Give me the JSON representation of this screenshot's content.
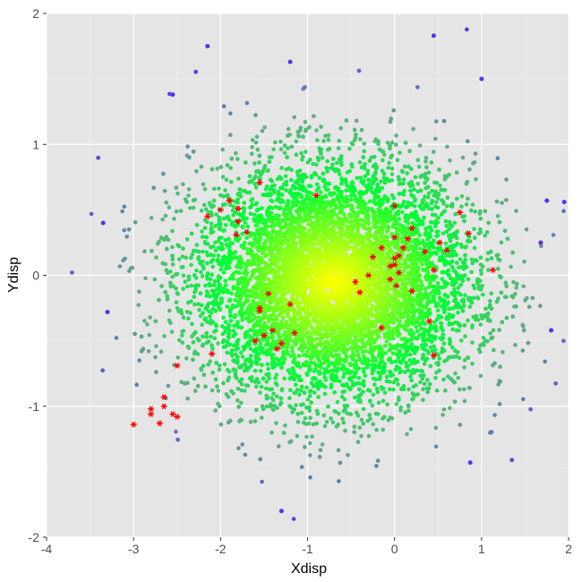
{
  "chart_data": {
    "type": "scatter",
    "title": "",
    "xlabel": "Xdisp",
    "ylabel": "Ydisp",
    "xlim": [
      -4,
      2
    ],
    "ylim": [
      -2,
      2
    ],
    "x_ticks": [
      -4,
      -3,
      -2,
      -1,
      0,
      1,
      2
    ],
    "y_ticks": [
      -2,
      -1,
      0,
      1,
      2
    ],
    "x_tick_labels": [
      "-4",
      "-3",
      "-2",
      "-1",
      "0",
      "1",
      "2"
    ],
    "y_tick_labels": [
      "-2",
      "-1",
      "0",
      "1",
      "2"
    ],
    "grid": true,
    "legend": "none",
    "colors": {
      "panel_background": "#e5e5e5",
      "grid_line": "#ffffff",
      "density_high": "#ffff00",
      "density_mid": "#00ff33",
      "density_low": "#66aa88",
      "density_min": "#5533ee",
      "highlight": "#ff0000"
    },
    "density_cloud": {
      "description_shape": "bivariate-normal",
      "center": [
        -0.7,
        -0.05
      ],
      "sd": [
        0.8,
        0.45
      ],
      "point_count": 9000
    },
    "outliers": [
      [
        -2.15,
        1.75
      ],
      [
        0.45,
        1.83
      ],
      [
        -2.55,
        1.38
      ],
      [
        1.0,
        1.5
      ],
      [
        -1.2,
        1.63
      ],
      [
        -3.35,
        0.4
      ],
      [
        -3.3,
        -0.28
      ],
      [
        1.95,
        0.56
      ],
      [
        1.75,
        0.57
      ],
      [
        1.8,
        -0.42
      ],
      [
        0.87,
        -1.43
      ],
      [
        -1.3,
        -1.8
      ],
      [
        1.68,
        0.25
      ]
    ],
    "highlight_series": {
      "marker": "asterisk",
      "points": [
        [
          -1.55,
          0.71
        ],
        [
          -0.9,
          0.61
        ],
        [
          -2.15,
          0.45
        ],
        [
          -2.0,
          0.5
        ],
        [
          -1.9,
          0.57
        ],
        [
          -1.8,
          0.41
        ],
        [
          -1.8,
          0.51
        ],
        [
          -1.7,
          0.33
        ],
        [
          -1.82,
          0.31
        ],
        [
          0.0,
          0.53
        ],
        [
          0.75,
          0.48
        ],
        [
          0.85,
          0.32
        ],
        [
          0.2,
          0.36
        ],
        [
          0.52,
          0.25
        ],
        [
          0.6,
          0.19
        ],
        [
          0.15,
          0.28
        ],
        [
          0.0,
          0.29
        ],
        [
          0.1,
          0.21
        ],
        [
          -0.15,
          0.21
        ],
        [
          0.35,
          0.18
        ],
        [
          0.05,
          0.15
        ],
        [
          0.0,
          0.13
        ],
        [
          -0.25,
          0.14
        ],
        [
          0.0,
          0.08
        ],
        [
          0.05,
          0.02
        ],
        [
          -0.05,
          0.07
        ],
        [
          1.13,
          0.04
        ],
        [
          0.45,
          0.04
        ],
        [
          -0.05,
          -0.03
        ],
        [
          -0.3,
          0.0
        ],
        [
          0.02,
          -0.08
        ],
        [
          0.2,
          -0.12
        ],
        [
          -0.45,
          -0.05
        ],
        [
          -0.4,
          -0.13
        ],
        [
          -1.45,
          -0.14
        ],
        [
          -1.2,
          -0.22
        ],
        [
          -1.55,
          -0.27
        ],
        [
          -1.55,
          -0.25
        ],
        [
          0.4,
          -0.35
        ],
        [
          -1.4,
          -0.42
        ],
        [
          -1.5,
          -0.46
        ],
        [
          -1.6,
          -0.5
        ],
        [
          -1.15,
          -0.44
        ],
        [
          -1.3,
          -0.52
        ],
        [
          -1.35,
          -0.56
        ],
        [
          -0.15,
          -0.4
        ],
        [
          0.45,
          -0.61
        ],
        [
          -2.1,
          -0.6
        ],
        [
          -2.5,
          -0.69
        ],
        [
          -2.65,
          -0.93
        ],
        [
          -2.65,
          -1.0
        ],
        [
          -2.8,
          -1.02
        ],
        [
          -2.8,
          -1.06
        ],
        [
          -2.55,
          -1.06
        ],
        [
          -2.5,
          -1.08
        ],
        [
          -2.7,
          -1.13
        ],
        [
          -3.0,
          -1.14
        ]
      ]
    }
  }
}
